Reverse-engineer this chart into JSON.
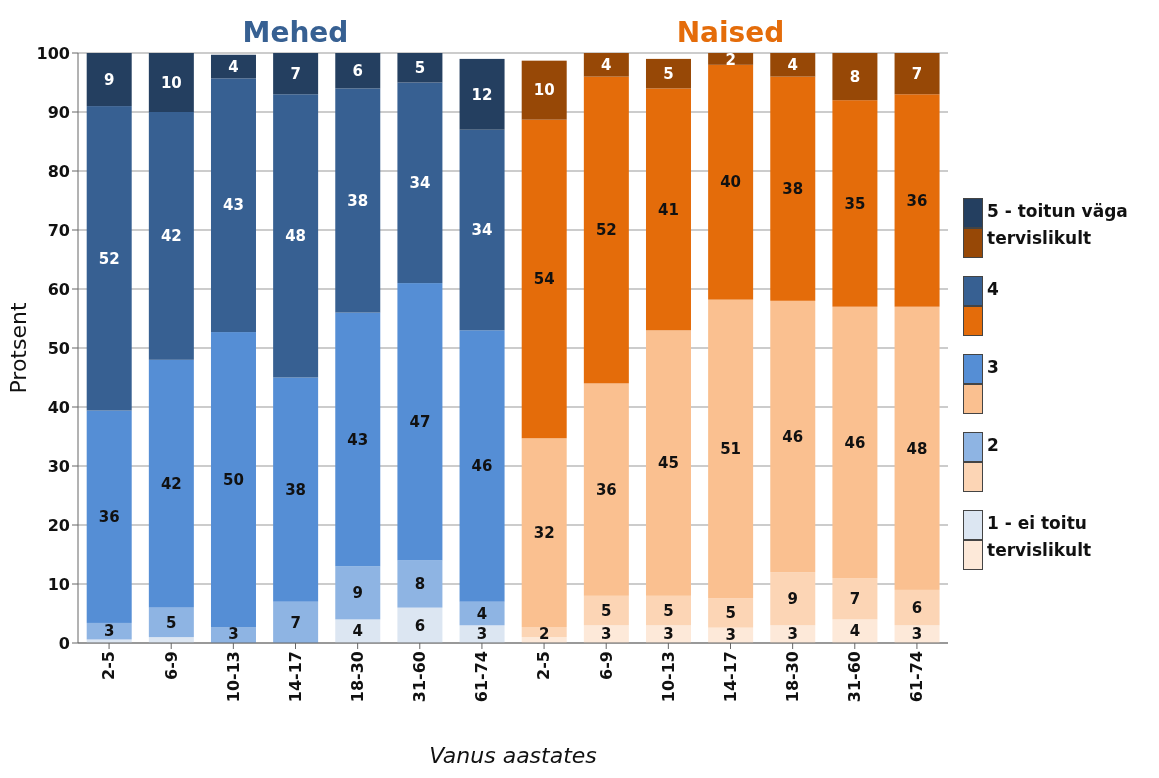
{
  "chart_data": {
    "type": "bar",
    "stacked": true,
    "xlabel": "Vanus aastates",
    "ylabel": "Protsent",
    "annotations": [
      "Mehed",
      "Naised"
    ],
    "categories": [
      "2-5",
      "6-9",
      "10-13",
      "14-17",
      "18-30",
      "31-60",
      "61-74",
      "2-5",
      "6-9",
      "10-13",
      "14-17",
      "18-30",
      "31-60",
      "61-74"
    ],
    "series": [
      {
        "name": "1 - ei toitu tervislikult",
        "colors": [
          "#dce6f2",
          "#dce6f2",
          "#dce6f2",
          "#dce6f2",
          "#dce6f2",
          "#dce6f2",
          "#dce6f2",
          "#fde9d9",
          "#fde9d9",
          "#fde9d9",
          "#fde9d9",
          "#fde9d9",
          "#fde9d9",
          "#fde9d9"
        ],
        "values": [
          0.6,
          1,
          0,
          0,
          4,
          6,
          3,
          1,
          3,
          3,
          2.6,
          3,
          4,
          3
        ],
        "value_labels": [
          null,
          null,
          null,
          null,
          "4",
          "6",
          "3",
          null,
          "3",
          "3",
          "3",
          "3",
          "4",
          "3"
        ]
      },
      {
        "name": "2",
        "colors": [
          "#8eb4e3",
          "#8eb4e3",
          "#8eb4e3",
          "#8eb4e3",
          "#8eb4e3",
          "#8eb4e3",
          "#8eb4e3",
          "#fcd5b5",
          "#fcd5b5",
          "#fcd5b5",
          "#fcd5b5",
          "#fcd5b5",
          "#fcd5b5",
          "#fcd5b5"
        ],
        "values": [
          2.8,
          5,
          2.7,
          7,
          9,
          8,
          4,
          1.7,
          5,
          5,
          5,
          9,
          7,
          6
        ],
        "value_labels": [
          "3",
          "5",
          "3",
          "7",
          "9",
          "8",
          "4",
          "2",
          "5",
          "5",
          "5",
          "9",
          "7",
          "6"
        ]
      },
      {
        "name": "3",
        "colors": [
          "#558ed5",
          "#558ed5",
          "#558ed5",
          "#558ed5",
          "#558ed5",
          "#558ed5",
          "#558ed5",
          "#fac090",
          "#fac090",
          "#fac090",
          "#fac090",
          "#fac090",
          "#fac090",
          "#fac090"
        ],
        "values": [
          36,
          42,
          50,
          38,
          43,
          47,
          46,
          32,
          36,
          45,
          50.6,
          46,
          46,
          48
        ],
        "value_labels": [
          "36",
          "42",
          "50",
          "38",
          "43",
          "47",
          "46",
          "32",
          "36",
          "45",
          "51",
          "46",
          "46",
          "48"
        ]
      },
      {
        "name": "4",
        "colors": [
          "#376092",
          "#376092",
          "#376092",
          "#376092",
          "#376092",
          "#376092",
          "#376092",
          "#e46c0a",
          "#e46c0a",
          "#e46c0a",
          "#e46c0a",
          "#e46c0a",
          "#e46c0a",
          "#e46c0a"
        ],
        "values": [
          51.6,
          42,
          43,
          48,
          38,
          34,
          34,
          54,
          52,
          41,
          39.8,
          38,
          35,
          36
        ],
        "value_labels": [
          "52",
          "42",
          "43",
          "48",
          "38",
          "34",
          "34",
          "54",
          "52",
          "41",
          "40",
          "38",
          "35",
          "36"
        ]
      },
      {
        "name": "5 - toitun väga tervislikult",
        "colors": [
          "#243f60",
          "#243f60",
          "#243f60",
          "#243f60",
          "#243f60",
          "#243f60",
          "#243f60",
          "#974806",
          "#974806",
          "#974806",
          "#974806",
          "#974806",
          "#974806",
          "#974806"
        ],
        "values": [
          9,
          10,
          4,
          7,
          6,
          5,
          12,
          10,
          4,
          5,
          2,
          4,
          8,
          7
        ],
        "value_labels": [
          "9",
          "10",
          "4",
          "7",
          "6",
          "5",
          "12",
          "10",
          "4",
          "5",
          "2",
          "4",
          "8",
          "7"
        ]
      }
    ],
    "ylim": [
      0,
      100
    ],
    "yticks": [
      0,
      10,
      20,
      30,
      40,
      50,
      60,
      70,
      80,
      90,
      100
    ],
    "grid": "y",
    "legend": "right"
  }
}
